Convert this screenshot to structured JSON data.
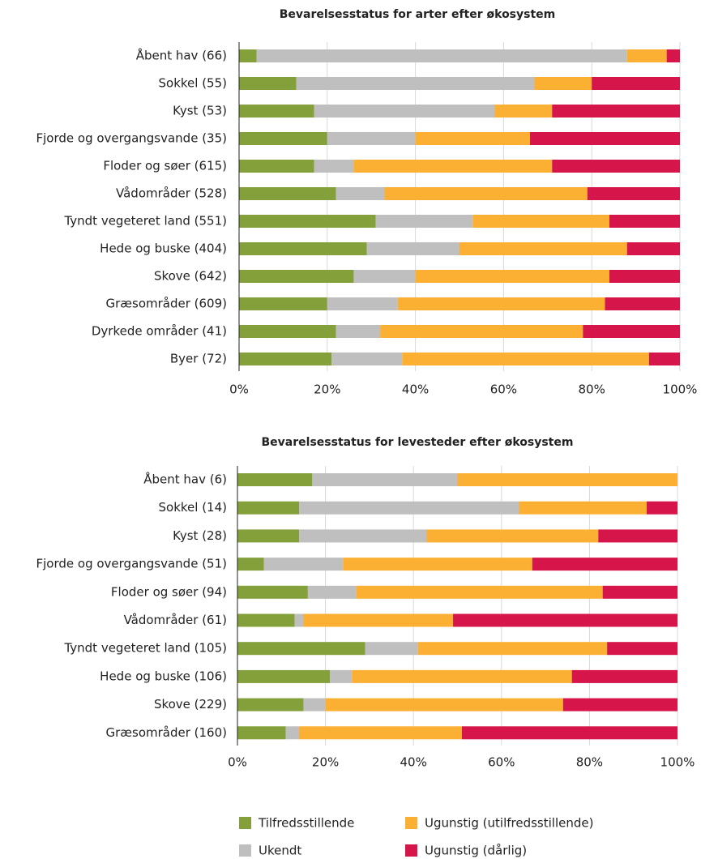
{
  "chart_data": [
    {
      "type": "bar",
      "orientation": "horizontal",
      "stacked": true,
      "title": "Bevarelsesstatus for arter efter økosystem",
      "categories": [
        "Åbent hav (66)",
        "Sokkel (55)",
        "Kyst (53)",
        "Fjorde og overgangsvande  (35)",
        "Floder og søer (615)",
        "Vådområder (528)",
        "Tyndt vegeteret land (551)",
        "Hede og buske (404)",
        "Skove (642)",
        "Græsområder (609)",
        "Dyrkede områder (41)",
        "Byer (72)"
      ],
      "series": [
        {
          "name": "Tilfredsstillende",
          "color": "#84a03a",
          "values": [
            4,
            13,
            17,
            20,
            17,
            22,
            31,
            29,
            26,
            20,
            22,
            21
          ]
        },
        {
          "name": "Ukendt",
          "color": "#bfbfbf",
          "values": [
            84,
            54,
            41,
            20,
            9,
            11,
            22,
            21,
            14,
            16,
            10,
            16
          ]
        },
        {
          "name": "Ugunstig (utilfredsstillende)",
          "color": "#fbb034",
          "values": [
            9,
            13,
            13,
            26,
            45,
            46,
            31,
            38,
            44,
            47,
            46,
            56
          ]
        },
        {
          "name": "Ugunstig (dårlig)",
          "color": "#d6164a",
          "values": [
            3,
            20,
            29,
            34,
            29,
            21,
            16,
            12,
            16,
            17,
            22,
            7
          ]
        }
      ],
      "xlim": [
        0,
        100
      ],
      "xticks": [
        {
          "value": 0,
          "label": "0%"
        },
        {
          "value": 20,
          "label": "20%"
        },
        {
          "value": 40,
          "label": "40%"
        },
        {
          "value": 60,
          "label": "60%"
        },
        {
          "value": 80,
          "label": "80%"
        },
        {
          "value": 100,
          "label": "100%"
        }
      ],
      "grid": true
    },
    {
      "type": "bar",
      "orientation": "horizontal",
      "stacked": true,
      "title": "Bevarelsesstatus for levesteder efter økosystem",
      "categories": [
        "Åbent hav (6)",
        "Sokkel (14)",
        "Kyst (28)",
        "Fjorde og overgangsvande  (51)",
        "Floder og søer (94)",
        "Vådområder (61)",
        "Tyndt vegeteret land (105)",
        "Hede og buske (106)",
        "Skove (229)",
        "Græsområder (160)"
      ],
      "series": [
        {
          "color": "#84a03a",
          "values": [
            17,
            14,
            14,
            6,
            16,
            13,
            29,
            21,
            15,
            11
          ]
        },
        {
          "color": "#bfbfbf",
          "values": [
            33,
            50,
            29,
            18,
            11,
            2,
            12,
            5,
            5,
            3
          ]
        },
        {
          "color": "#fbb034",
          "values": [
            50,
            29,
            39,
            43,
            56,
            34,
            43,
            50,
            54,
            37
          ]
        },
        {
          "color": "#d6164a",
          "values": [
            0,
            7,
            18,
            33,
            17,
            51,
            16,
            24,
            26,
            49
          ]
        }
      ],
      "xlim": [
        0,
        100
      ],
      "xticks": [
        {
          "value": 0,
          "label": "0%"
        },
        {
          "value": 20,
          "label": "20%"
        },
        {
          "value": 40,
          "label": "40%"
        },
        {
          "value": 60,
          "label": "60%"
        },
        {
          "value": 80,
          "label": "80%"
        },
        {
          "value": 100,
          "label": "100%"
        }
      ],
      "grid": true
    }
  ]
}
